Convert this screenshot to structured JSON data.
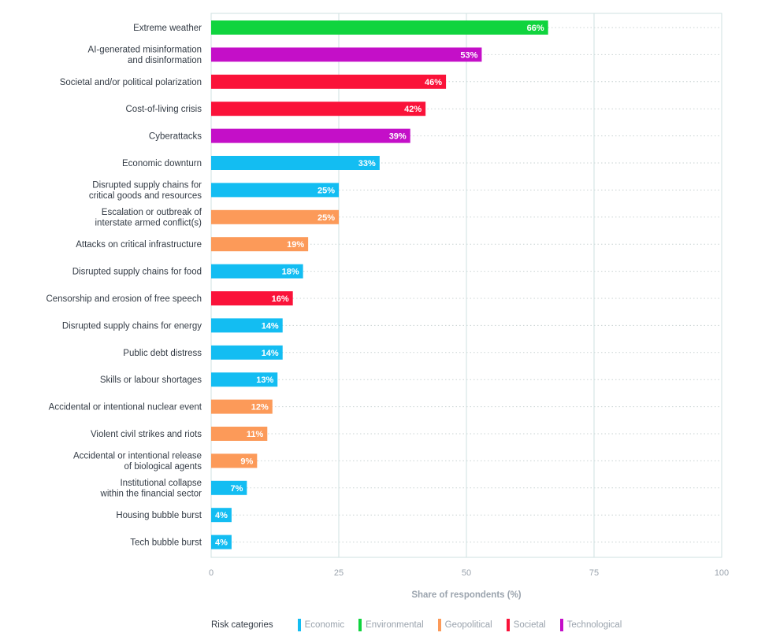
{
  "chart_data": {
    "type": "bar",
    "orientation": "horizontal",
    "categories": [
      "Extreme weather",
      "AI-generated misinformation\nand disinformation",
      "Societal and/or political polarization",
      "Cost-of-living crisis",
      "Cyberattacks",
      "Economic downturn",
      "Disrupted supply chains for\ncritical goods and resources",
      "Escalation or outbreak of\ninterstate armed conflict(s)",
      "Attacks on critical infrastructure",
      "Disrupted supply chains for food",
      "Censorship and erosion of free speech",
      "Disrupted supply chains for energy",
      "Public debt distress",
      "Skills or labour shortages",
      "Accidental or intentional nuclear event",
      "Violent civil strikes and riots",
      "Accidental or intentional release\nof biological agents",
      "Institutional collapse\nwithin the financial sector",
      "Housing bubble burst",
      "Tech bubble burst"
    ],
    "values": [
      66,
      53,
      46,
      42,
      39,
      33,
      25,
      25,
      19,
      18,
      16,
      14,
      14,
      13,
      12,
      11,
      9,
      7,
      4,
      4
    ],
    "value_labels": [
      "66%",
      "53%",
      "46%",
      "42%",
      "39%",
      "33%",
      "25%",
      "25%",
      "19%",
      "18%",
      "16%",
      "14%",
      "14%",
      "13%",
      "12%",
      "11%",
      "9%",
      "7%",
      "4%",
      "4%"
    ],
    "risk_category": [
      "Environmental",
      "Technological",
      "Societal",
      "Societal",
      "Technological",
      "Economic",
      "Economic",
      "Geopolitical",
      "Geopolitical",
      "Economic",
      "Societal",
      "Economic",
      "Economic",
      "Economic",
      "Geopolitical",
      "Geopolitical",
      "Geopolitical",
      "Economic",
      "Economic",
      "Economic"
    ],
    "xlabel": "Share of respondents (%)",
    "ylabel": "",
    "xlim": [
      0,
      100
    ],
    "xticks": [
      0,
      25,
      50,
      75,
      100
    ],
    "grid": true,
    "legend": {
      "title": "Risk categories",
      "placement": "bottom-left",
      "items": [
        {
          "name": "Economic",
          "color": "#13bdf2"
        },
        {
          "name": "Environmental",
          "color": "#10d43e"
        },
        {
          "name": "Geopolitical",
          "color": "#fc9a59"
        },
        {
          "name": "Societal",
          "color": "#fa1239"
        },
        {
          "name": "Technological",
          "color": "#c40fc8"
        }
      ]
    }
  }
}
